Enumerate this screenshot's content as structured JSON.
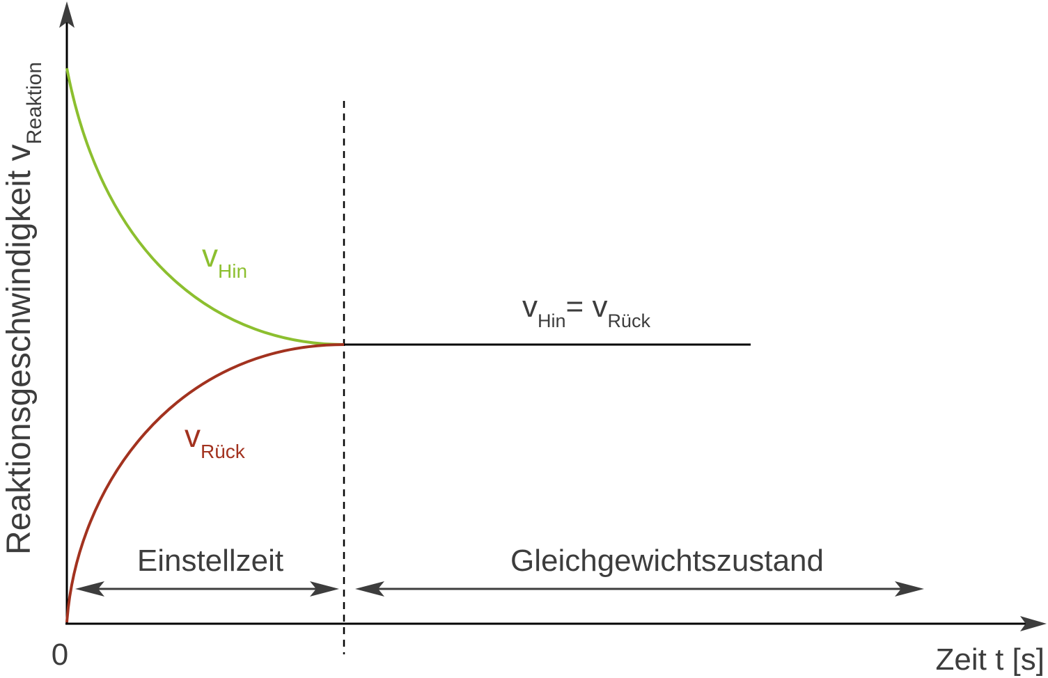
{
  "y_axis_label": {
    "main": "Reaktionsgeschwindigkeit v",
    "sub": "Reaktion"
  },
  "x_axis_label": "Zeit t [s]",
  "origin_label": "0",
  "curves": {
    "hin": {
      "v": "v",
      "sub": "Hin",
      "color": "#8cbf2f"
    },
    "rueck": {
      "v": "v",
      "sub": "Rück",
      "color": "#a2321f"
    }
  },
  "equilibrium_label": {
    "v1": "v",
    "sub1": "Hin",
    "eq": "= ",
    "v2": "v",
    "sub2": "Rück"
  },
  "phases": {
    "einstellzeit": "Einstellzeit",
    "gleichgewicht": "Gleichgewichtszustand"
  },
  "colors": {
    "axis": "#000000",
    "text": "#3d3d3d",
    "arrow": "#3d3d3d"
  }
}
